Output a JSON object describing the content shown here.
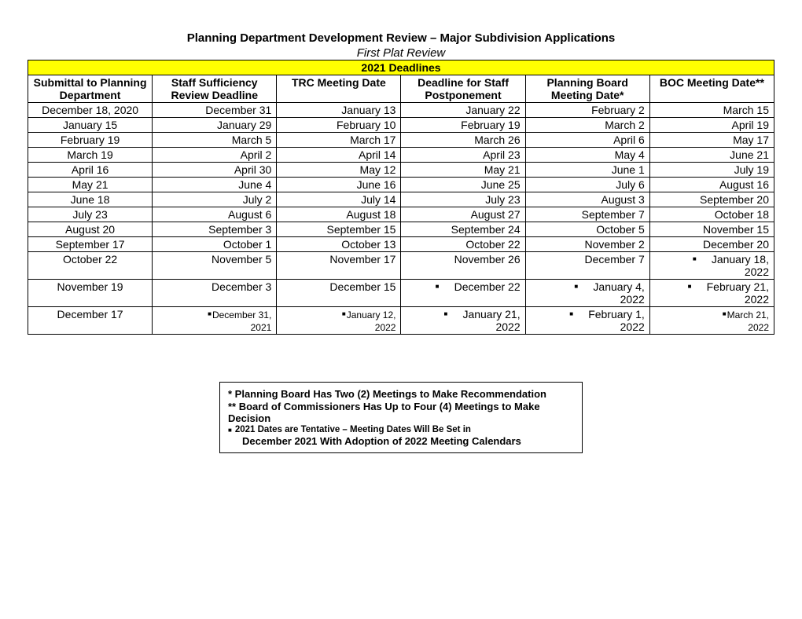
{
  "title": "Planning Department Development Review – Major Subdivision Applications",
  "subtitle": "First Plat Review",
  "banner": "2021 Deadlines",
  "columns": [
    "Submittal to Planning Department",
    "Staff Sufficiency Review Deadline",
    "TRC Meeting Date",
    "Deadline for Staff Postponement",
    "Planning Board Meeting Date*",
    "BOC Meeting Date**"
  ],
  "rows": [
    {
      "c": [
        "December 18, 2020",
        "December 31",
        "January 13",
        "January 22",
        "February 2",
        "March 15"
      ],
      "b": [
        0,
        0,
        0,
        0,
        0,
        0
      ]
    },
    {
      "c": [
        "January 15",
        "January 29",
        "February 10",
        "February 19",
        "March 2",
        "April 19"
      ],
      "b": [
        0,
        0,
        0,
        0,
        0,
        0
      ]
    },
    {
      "c": [
        "February 19",
        "March 5",
        "March 17",
        "March 26",
        "April 6",
        "May 17"
      ],
      "b": [
        0,
        0,
        0,
        0,
        0,
        0
      ]
    },
    {
      "c": [
        "March 19",
        "April 2",
        "April 14",
        "April 23",
        "May 4",
        "June 21"
      ],
      "b": [
        0,
        0,
        0,
        0,
        0,
        0
      ]
    },
    {
      "c": [
        "April 16",
        "April 30",
        "May 12",
        "May 21",
        "June 1",
        "July 19"
      ],
      "b": [
        0,
        0,
        0,
        0,
        0,
        0
      ]
    },
    {
      "c": [
        "May 21",
        "June 4",
        "June 16",
        "June 25",
        "July 6",
        "August 16"
      ],
      "b": [
        0,
        0,
        0,
        0,
        0,
        0
      ]
    },
    {
      "c": [
        "June 18",
        "July 2",
        "July 14",
        "July 23",
        "August 3",
        "September 20"
      ],
      "b": [
        0,
        0,
        0,
        0,
        0,
        0
      ]
    },
    {
      "c": [
        "July 23",
        "August 6",
        "August 18",
        "August 27",
        "September 7",
        "October 18"
      ],
      "b": [
        0,
        0,
        0,
        0,
        0,
        0
      ]
    },
    {
      "c": [
        "August 20",
        "September 3",
        "September 15",
        "September 24",
        "October 5",
        "November 15"
      ],
      "b": [
        0,
        0,
        0,
        0,
        0,
        0
      ]
    },
    {
      "c": [
        "September 17",
        "October 1",
        "October 13",
        "October 22",
        "November 2",
        "December 20"
      ],
      "b": [
        0,
        0,
        0,
        0,
        0,
        0
      ]
    },
    {
      "c": [
        "October 22",
        "November 5",
        "November 17",
        "November 26",
        "December 7",
        "January 18, 2022"
      ],
      "b": [
        0,
        0,
        0,
        0,
        0,
        1
      ]
    },
    {
      "c": [
        "November 19",
        "December 3",
        "December 15",
        "December 22",
        "January 4, 2022",
        "February 21, 2022"
      ],
      "b": [
        0,
        0,
        0,
        1,
        1,
        1
      ]
    },
    {
      "c": [
        "December 17",
        "December 31, 2021",
        "January 12, 2022",
        "January 21, 2022",
        "February 1, 2022",
        "March 21, 2022"
      ],
      "b": [
        0,
        2,
        2,
        1,
        1,
        2
      ],
      "small": [
        0,
        1,
        1,
        0,
        0,
        1
      ]
    }
  ],
  "footnotes": {
    "f1": "*    Planning Board Has Two (2) Meetings to Make Recommendation",
    "f2": "** Board of Commissioners Has Up to Four (4) Meetings to Make Decision",
    "f3a": "2021 Dates are Tentative – Meeting Dates Will Be Set in",
    "f3b": "December 2021 With Adoption of 2022 Meeting Calendars"
  }
}
